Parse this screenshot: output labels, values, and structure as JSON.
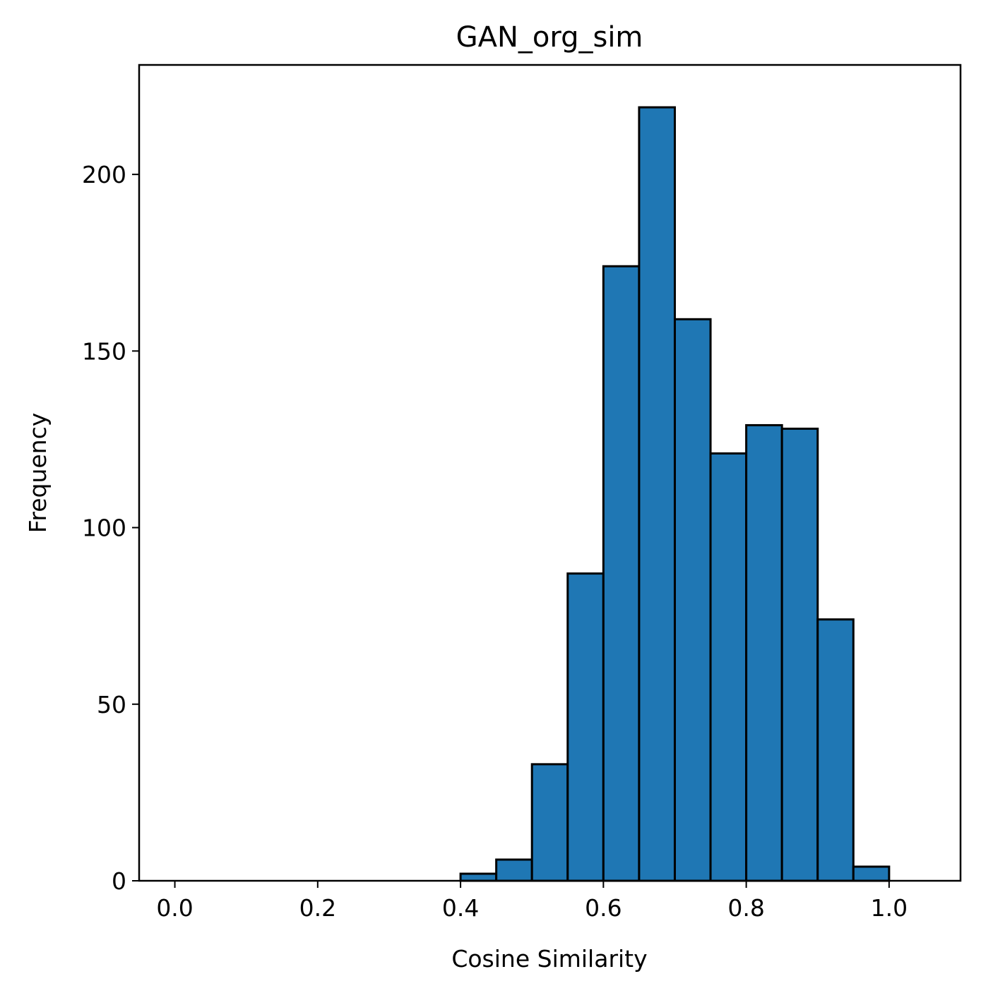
{
  "chart_data": {
    "type": "bar",
    "title": "GAN_org_sim",
    "xlabel": "Cosine Similarity",
    "ylabel": "Frequency",
    "xlim": [
      -0.05,
      1.1
    ],
    "ylim": [
      0,
      231
    ],
    "xticks": [
      0.0,
      0.2,
      0.4,
      0.6,
      0.8,
      1.0
    ],
    "xtick_labels": [
      "0.0",
      "0.2",
      "0.4",
      "0.6",
      "0.8",
      "1.0"
    ],
    "yticks": [
      0,
      50,
      100,
      150,
      200
    ],
    "ytick_labels": [
      "0",
      "50",
      "100",
      "150",
      "200"
    ],
    "grid": false,
    "bar_color": "#1f77b4",
    "edge_color": "#000000",
    "bin_width": 0.05,
    "bin_starts": [
      0.0,
      0.05,
      0.1,
      0.15,
      0.2,
      0.25,
      0.3,
      0.35,
      0.4,
      0.45,
      0.5,
      0.55,
      0.6,
      0.65,
      0.7,
      0.75,
      0.8,
      0.85,
      0.9,
      0.95,
      1.0
    ],
    "values": [
      0,
      0,
      0,
      0,
      0,
      0,
      0,
      0,
      2,
      6,
      33,
      87,
      174,
      219,
      159,
      121,
      129,
      128,
      74,
      4,
      0
    ]
  }
}
